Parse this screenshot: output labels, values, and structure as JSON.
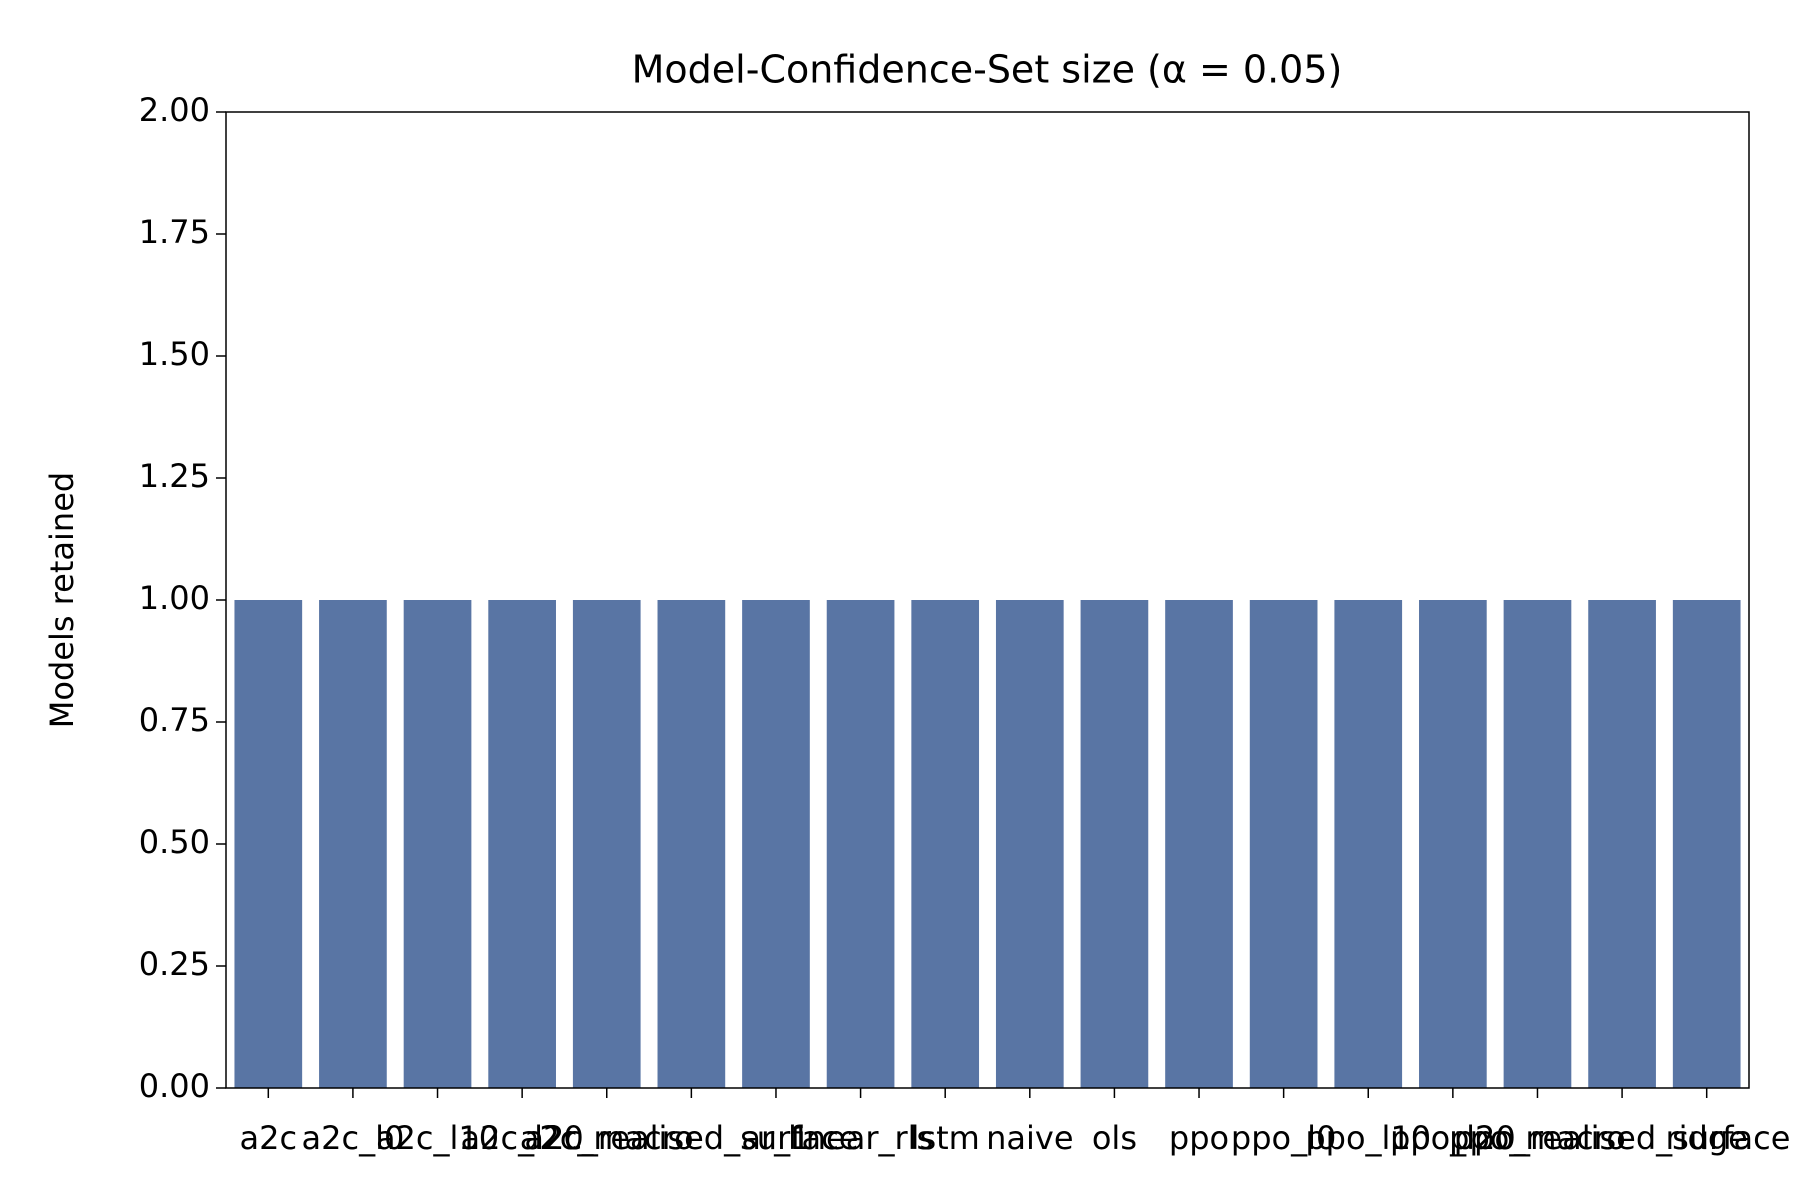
{
  "chart_data": {
    "type": "bar",
    "title": "Model-Confidence-Set size (α = 0.05)",
    "ylabel": "Models retained",
    "categories": [
      "a2c",
      "a2c_l0",
      "a2c_l10",
      "a2c_l20",
      "a2c_macro",
      "a2c_realised_surface",
      "ar_1",
      "linear_rls",
      "lstm",
      "naive",
      "ols",
      "ppo",
      "ppo_l0",
      "ppo_l10",
      "ppo_l20",
      "ppo_macro",
      "ppo_realised_surface",
      "ridge"
    ],
    "values": [
      1,
      1,
      1,
      1,
      1,
      1,
      1,
      1,
      1,
      1,
      1,
      1,
      1,
      1,
      1,
      1,
      1,
      1
    ],
    "color": "#5975a4",
    "ylim": [
      0,
      2
    ],
    "yticks": [
      {
        "value": 0,
        "label": "0.00"
      },
      {
        "value": 0.25,
        "label": "0.25"
      },
      {
        "value": 0.5,
        "label": "0.50"
      },
      {
        "value": 0.75,
        "label": "0.75"
      },
      {
        "value": 1,
        "label": "1.00"
      },
      {
        "value": 1.25,
        "label": "1.25"
      },
      {
        "value": 1.5,
        "label": "1.50"
      },
      {
        "value": 1.75,
        "label": "1.75"
      },
      {
        "value": 2,
        "label": "2.00"
      }
    ],
    "grid": false
  }
}
